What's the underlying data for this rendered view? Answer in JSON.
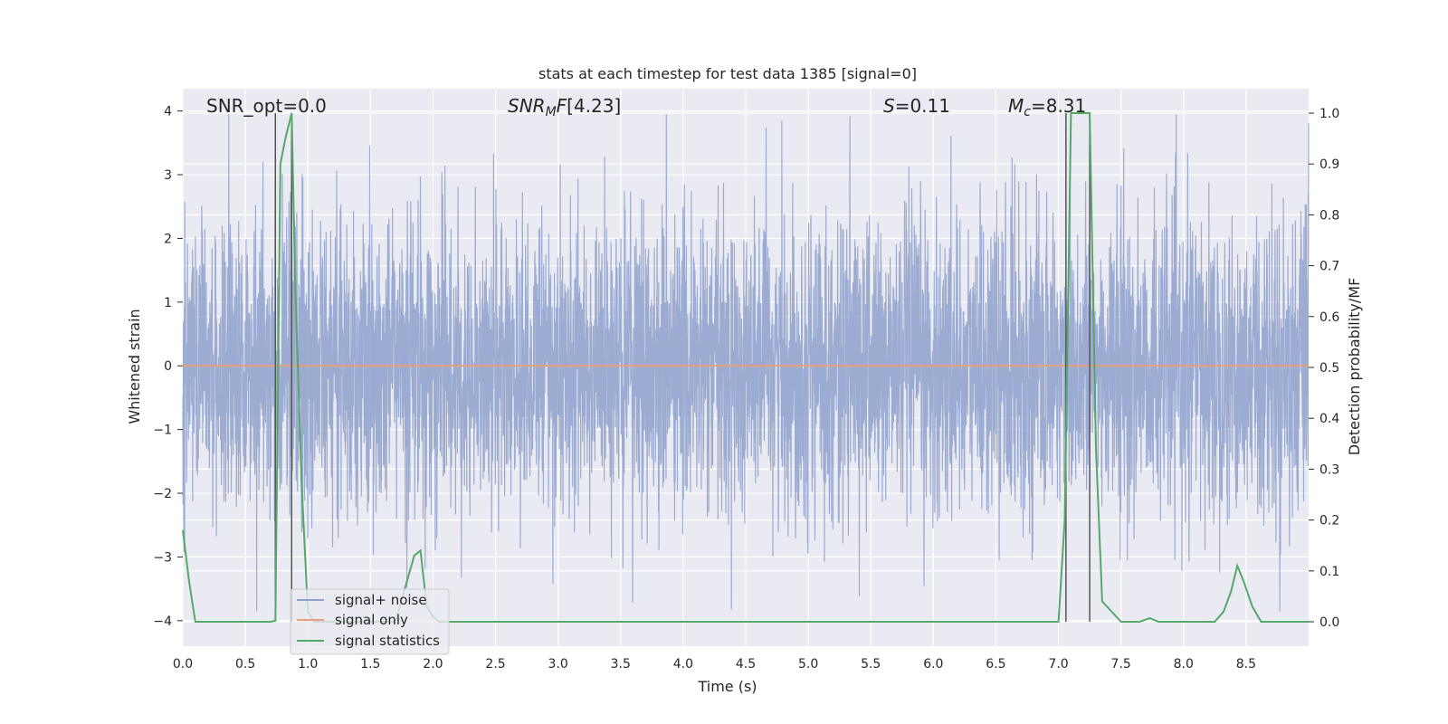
{
  "chart_data": {
    "type": "line",
    "title": "stats at each timestep for test data 1385 [signal=0]",
    "xlabel": "Time (s)",
    "ylabel": "Whitened strain",
    "y2label": "Detection probability/MF",
    "xlim": [
      0,
      9
    ],
    "ylim": [
      -4.4,
      4.35
    ],
    "y2lim": [
      -0.048,
      1.048
    ],
    "xticks": [
      "0.0",
      "0.5",
      "1.0",
      "1.5",
      "2.0",
      "2.5",
      "3.0",
      "3.5",
      "4.0",
      "4.5",
      "5.0",
      "5.5",
      "6.0",
      "6.5",
      "7.0",
      "7.5",
      "8.0",
      "8.5"
    ],
    "yticks": [
      "−4",
      "−3",
      "−2",
      "−1",
      "0",
      "1",
      "2",
      "3",
      "4"
    ],
    "y2ticks": [
      "0.0",
      "0.1",
      "0.2",
      "0.3",
      "0.4",
      "0.5",
      "0.6",
      "0.7",
      "0.8",
      "0.9",
      "1.0"
    ],
    "grid": true,
    "legend_position": "lower-left",
    "annotations": {
      "snr_opt": "SNR_opt=0.0",
      "snr_mf": "[4.23]",
      "s": "=0.11",
      "mc": "=8.31"
    },
    "series": [
      {
        "name": "signal+ noise",
        "color": "#8da0cb",
        "description_values": "Gaussian whitened noise, amplitude roughly between -3.8 and 3.9"
      },
      {
        "name": "signal only",
        "color": "#e5a07c",
        "x": [
          0,
          9
        ],
        "y": [
          0,
          0
        ]
      },
      {
        "name": "signal statistics",
        "color": "#55a868",
        "x": [
          0.0,
          0.05,
          0.1,
          0.7,
          0.74,
          0.78,
          0.82,
          0.87,
          0.9,
          0.95,
          1.0,
          1.05,
          1.7,
          1.85,
          1.9,
          1.95,
          2.0,
          2.05,
          2.1,
          2.15,
          6.9,
          7.0,
          7.05,
          7.1,
          7.15,
          7.2,
          7.25,
          7.3,
          7.35,
          7.5,
          7.65,
          7.73,
          7.8,
          8.25,
          8.32,
          8.38,
          8.43,
          8.48,
          8.55,
          8.62,
          9.0
        ],
        "y": [
          0.18,
          0.08,
          0.0,
          0.0,
          0.002,
          0.9,
          0.95,
          1.0,
          0.65,
          0.27,
          0.02,
          0.0,
          0.0,
          0.13,
          0.14,
          0.03,
          0.01,
          0.0,
          0.0,
          0.0,
          0.0,
          0.0,
          0.2,
          1.0,
          1.0,
          1.0,
          1.0,
          0.34,
          0.04,
          0.0,
          0.0,
          0.007,
          0.0,
          0.0,
          0.02,
          0.06,
          0.11,
          0.08,
          0.03,
          0.0,
          0.0
        ]
      }
    ],
    "vertical_lines_x": [
      0.74,
      0.87,
      7.06,
      7.25
    ]
  }
}
